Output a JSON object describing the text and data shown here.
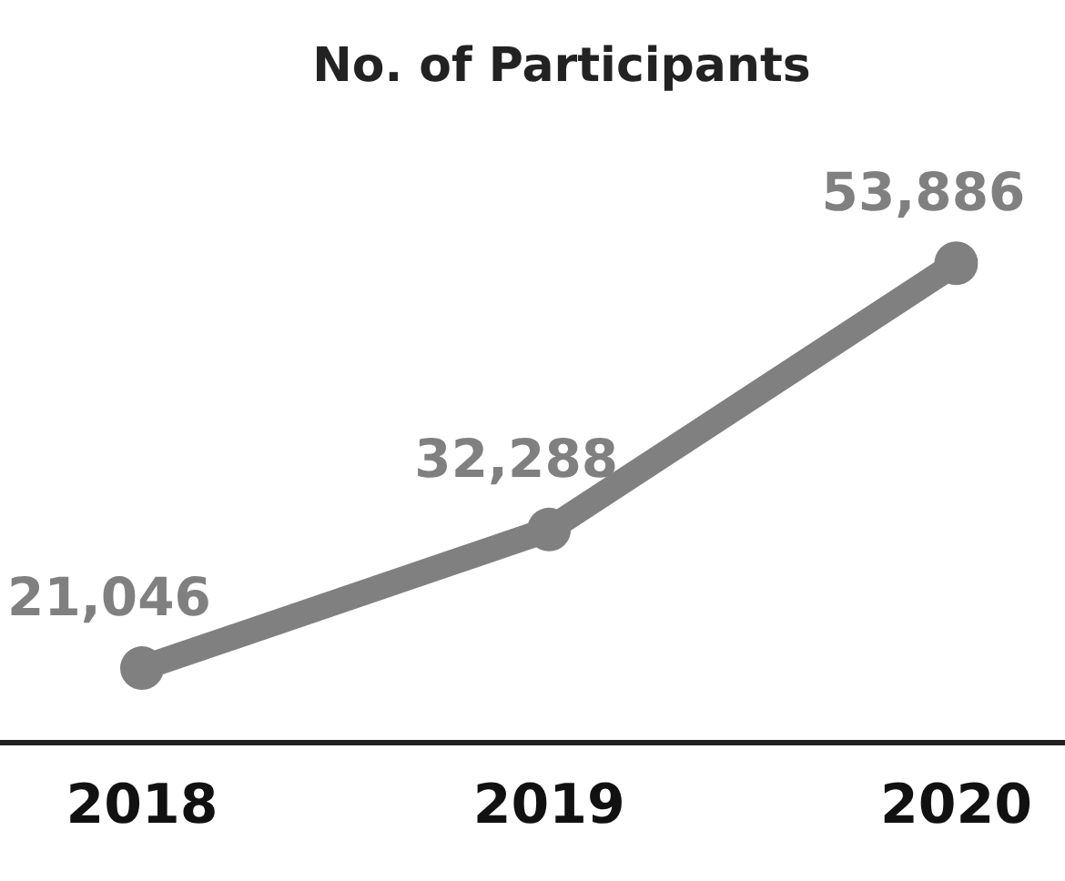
{
  "chart_data": {
    "type": "line",
    "title": "No. of Participants",
    "categories": [
      "2018",
      "2019",
      "2020"
    ],
    "series": [
      {
        "color": "#808080",
        "values": [
          21046,
          32288,
          53886
        ],
        "value_labels": [
          "21,046",
          "32,288",
          "53,886"
        ]
      }
    ],
    "tick_labels": "x",
    "grid": false,
    "legend": false,
    "marker": "circle",
    "line_style": "solid"
  }
}
